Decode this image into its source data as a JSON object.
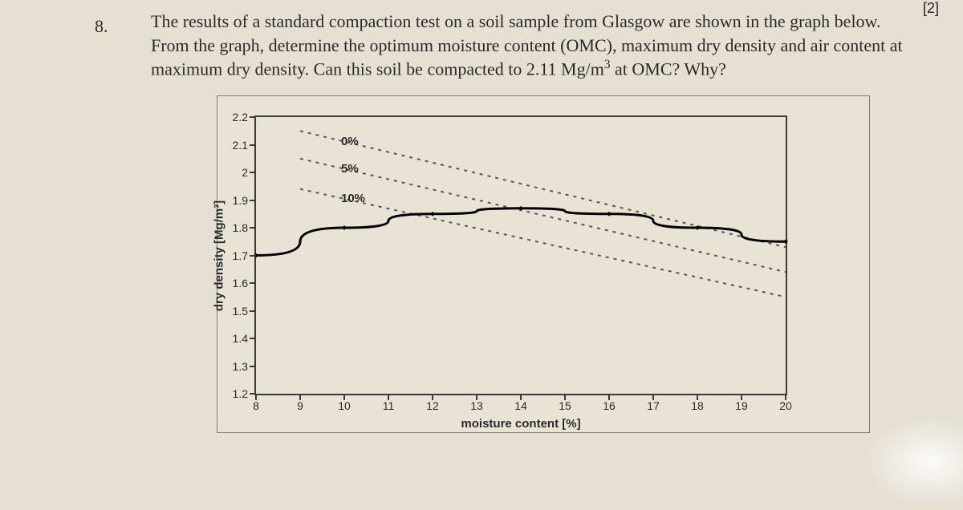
{
  "marks_tag": "[2]",
  "question_number": "8.",
  "question_text": "The results of a standard compaction test on a soil sample from Glasgow are shown in the graph below. From the graph, determine the optimum moisture content (OMC), maximum dry density and air content at maximum dry density. Can this soil be compacted to 2.11 Mg/m",
  "question_text_tail": " at OMC? Why?",
  "chart": {
    "type": "line",
    "x_label": "moisture content [%]",
    "y_label": "dry density [Mg/m³]",
    "xlim": [
      8,
      20
    ],
    "ylim": [
      1.2,
      2.2
    ],
    "xtick_step": 1,
    "ytick_step": 0.1,
    "background": "#e9e3d6",
    "axis_color": "#3a3a3a",
    "axis_font": "Arial",
    "axis_fontsize_pt": 11,
    "title_fontsize_pt": 12,
    "compaction_curve": {
      "color": "#000000",
      "line_width": 3,
      "marker": "diamond",
      "marker_size": 6,
      "x": [
        8,
        10,
        12,
        14,
        16,
        18,
        20
      ],
      "y": [
        1.7,
        1.8,
        1.85,
        1.87,
        1.85,
        1.8,
        1.75
      ]
    },
    "air_void_lines": {
      "style": "dashed",
      "dash": "4 6",
      "color": "#555555",
      "line_width": 2,
      "series": [
        {
          "label": "0%",
          "points": [
            [
              9,
              2.15
            ],
            [
              20,
              1.73
            ]
          ]
        },
        {
          "label": "5%",
          "points": [
            [
              9,
              2.05
            ],
            [
              20,
              1.64
            ]
          ]
        },
        {
          "label": "10%",
          "points": [
            [
              9,
              1.94
            ],
            [
              20,
              1.55
            ]
          ]
        }
      ],
      "label_x": 10,
      "label_fontsize_pt": 12,
      "label_fontweight": "bold"
    }
  }
}
